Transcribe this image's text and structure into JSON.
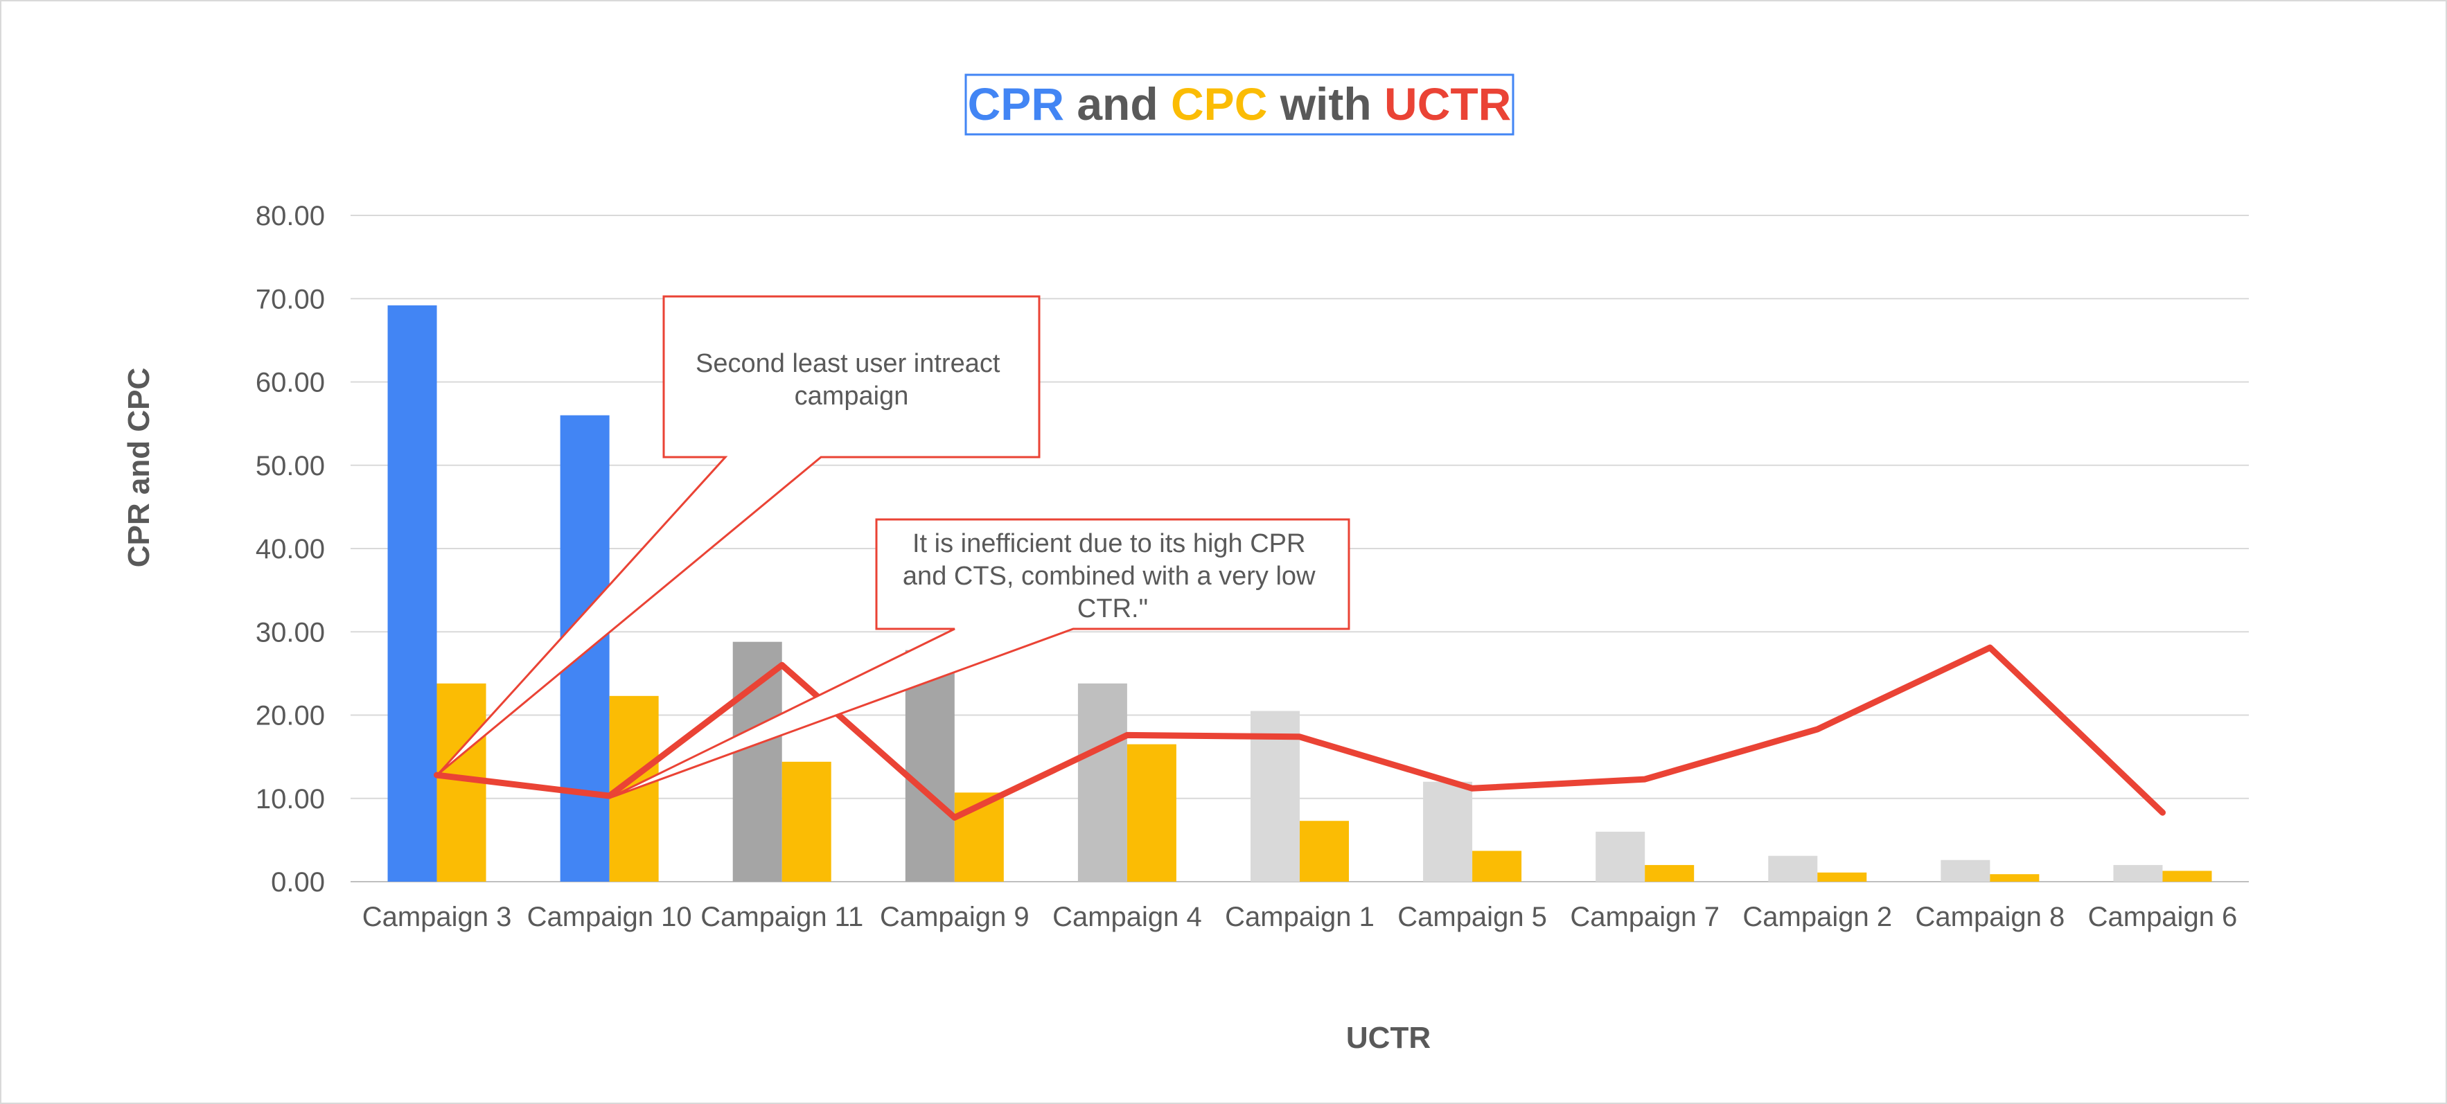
{
  "chart_data": {
    "type": "bar",
    "title_parts": [
      {
        "text": "CPR",
        "color": "#4285f4"
      },
      {
        "text": " and ",
        "color": "#595959"
      },
      {
        "text": "CPC",
        "color": "#fbbc04"
      },
      {
        "text": " with ",
        "color": "#595959"
      },
      {
        "text": "UCTR",
        "color": "#ea4335"
      }
    ],
    "xlabel": "UCTR",
    "ylabel": "CPR and CPC",
    "ylim": [
      0,
      80
    ],
    "yticks": [
      "0.00",
      "10.00",
      "20.00",
      "30.00",
      "40.00",
      "50.00",
      "60.00",
      "70.00",
      "80.00"
    ],
    "grid": true,
    "categories": [
      "Campaign 3",
      "Campaign 10",
      "Campaign 11",
      "Campaign 9",
      "Campaign 4",
      "Campaign 1",
      "Campaign 5",
      "Campaign 7",
      "Campaign 2",
      "Campaign 8",
      "Campaign 6"
    ],
    "series": [
      {
        "kind": "bar",
        "values": [
          69.2,
          56.0,
          28.8,
          27.8,
          23.8,
          20.5,
          12.0,
          6.0,
          3.1,
          2.6,
          2.0
        ],
        "colors": [
          "#4285f4",
          "#4285f4",
          "#a5a5a5",
          "#a5a5a5",
          "#bfbfbf",
          "#d9d9d9",
          "#d9d9d9",
          "#d9d9d9",
          "#d9d9d9",
          "#d9d9d9",
          "#d9d9d9"
        ]
      },
      {
        "kind": "bar",
        "values": [
          23.8,
          22.3,
          14.4,
          10.7,
          16.5,
          7.3,
          3.7,
          2.0,
          1.1,
          0.9,
          1.3
        ],
        "color": "#fbbc04"
      },
      {
        "kind": "line",
        "values": [
          12.8,
          10.3,
          26.0,
          7.7,
          17.6,
          17.4,
          11.2,
          12.3,
          18.3,
          28.1,
          8.3
        ],
        "color": "#ea4335"
      }
    ],
    "annotations": [
      {
        "lines": [
          "Second least user intreact",
          "campaign"
        ],
        "points_to": [
          0,
          1
        ]
      },
      {
        "lines": [
          "It is inefficient due to its high CPR",
          "and CTS, combined with a very low",
          "CTR.\""
        ],
        "points_to": [
          1
        ]
      }
    ]
  }
}
